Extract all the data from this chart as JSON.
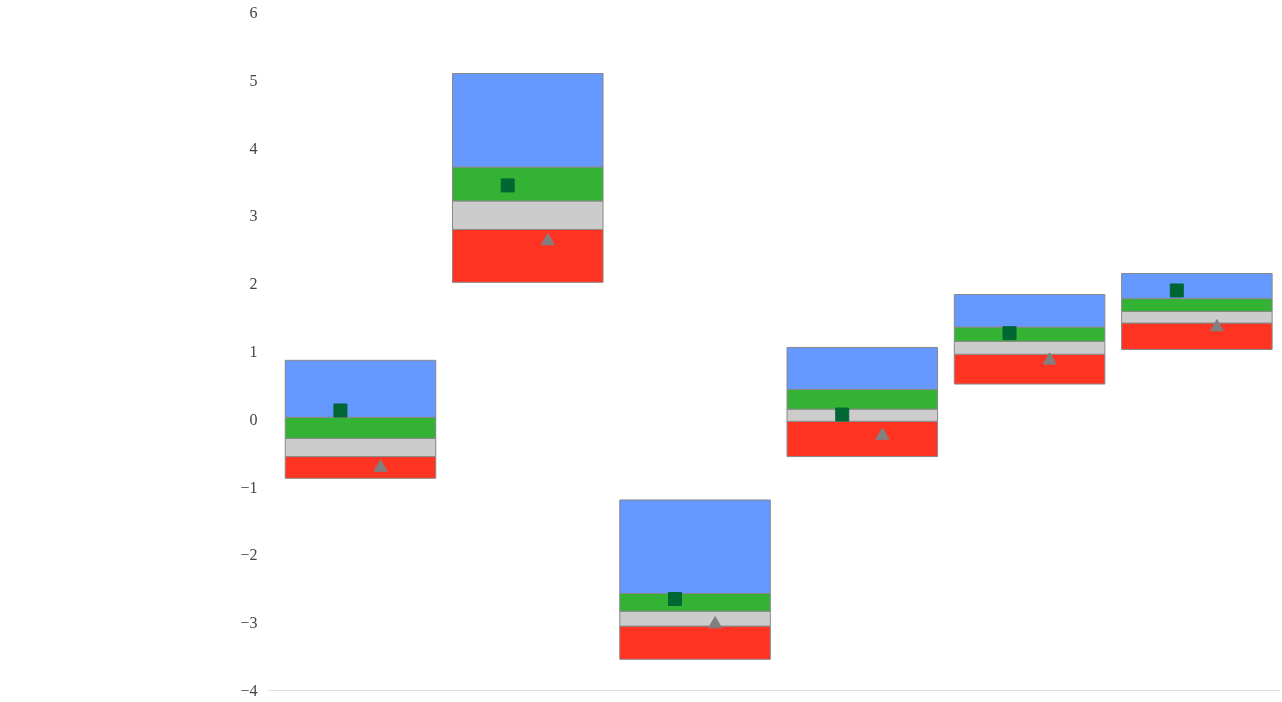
{
  "chart_data": {
    "type": "bar",
    "categories": [
      null,
      null,
      null,
      null,
      null,
      null
    ],
    "series": [
      {
        "color": "#ff3322",
        "base": [
          -0.87,
          2.02,
          -3.54,
          -0.55,
          0.52,
          1.03
        ],
        "values": [
          0.32,
          0.78,
          0.49,
          0.52,
          0.44,
          0.39
        ]
      },
      {
        "color": "#cccccc",
        "base": [
          -0.55,
          2.8,
          -3.05,
          -0.03,
          0.96,
          1.42
        ],
        "values": [
          0.27,
          0.42,
          0.22,
          0.18,
          0.19,
          0.17
        ]
      },
      {
        "color": "#33b233",
        "base": [
          -0.28,
          3.22,
          -2.83,
          0.15,
          1.15,
          1.59
        ],
        "values": [
          0.31,
          0.5,
          0.26,
          0.29,
          0.21,
          0.19
        ]
      },
      {
        "color": "#6699ff",
        "base": [
          0.03,
          3.72,
          -2.57,
          0.44,
          1.36,
          1.78
        ],
        "values": [
          0.84,
          1.38,
          1.38,
          0.62,
          0.48,
          0.37
        ]
      },
      {
        "type": "scatter",
        "marker": "square",
        "color": "#006633",
        "values": [
          0.13,
          3.45,
          -2.65,
          0.07,
          1.27,
          1.9
        ]
      },
      {
        "type": "scatter",
        "marker": "triangle",
        "color": "#808080",
        "values": [
          -0.71,
          2.63,
          -3.02,
          -0.24,
          0.87,
          1.36
        ]
      }
    ],
    "ylim": [
      -4,
      6
    ],
    "yticks": [
      -4,
      -3,
      -2,
      -1,
      0,
      1,
      2,
      3,
      4,
      5,
      6
    ],
    "tick_labels": "y"
  }
}
